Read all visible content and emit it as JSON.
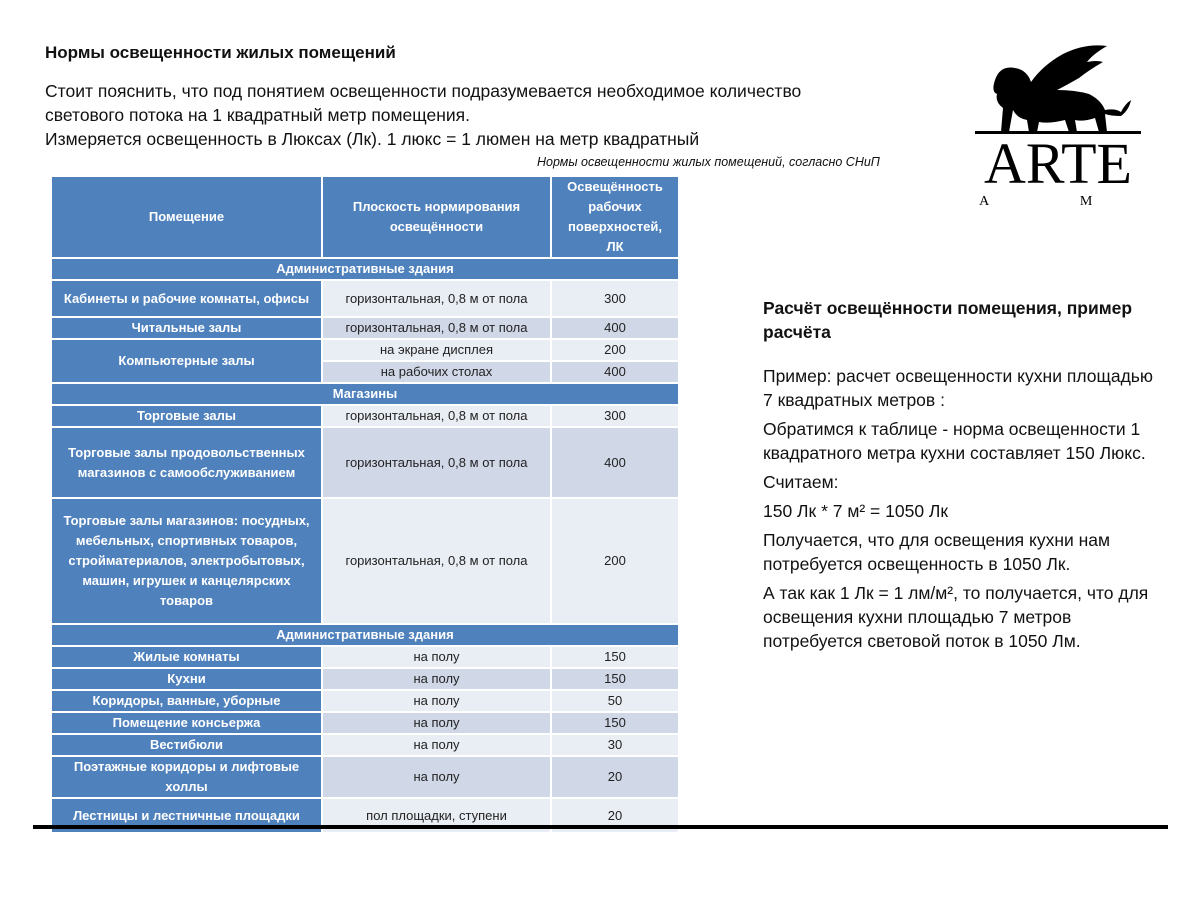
{
  "title": "Нормы освещенности жилых помещений",
  "intro": {
    "line1": "Стоит пояснить, что под понятием освещенности подразумевается необходимое количество",
    "line2": "светового потока на 1 квадратный метр помещения.",
    "line3": "Измеряется освещенность в Люксах (Лк). 1 люкс = 1 люмен на метр квадратный"
  },
  "table_caption": "Нормы освещенности жилых помещений, согласно СНиП",
  "table": {
    "headers": [
      "Помещение",
      "Плоскость нормирования освещённости",
      "Освещённость рабочих поверхностей, ЛК"
    ],
    "rows": [
      {
        "section": "Административные здания"
      },
      {
        "room": "Кабинеты и рабочие комнаты, офисы",
        "h": 35,
        "entries": [
          {
            "plane": "горизонтальная, 0,8 м от пола",
            "lux": "300"
          }
        ]
      },
      {
        "room": "Читальные залы",
        "h": 19,
        "entries": [
          {
            "plane": "горизонтальная, 0,8 м от пола",
            "lux": "400"
          }
        ]
      },
      {
        "room": "Компьютерные залы",
        "h": 19,
        "entries": [
          {
            "plane": "на экране дисплея",
            "lux": "200"
          },
          {
            "plane": "на рабочих столах",
            "lux": "400"
          }
        ]
      },
      {
        "section": "Магазины"
      },
      {
        "room": "Торговые залы",
        "h": 19,
        "entries": [
          {
            "plane": "горизонтальная, 0,8 м от пола",
            "lux": "300"
          }
        ]
      },
      {
        "room": "Торговые залы продовольственных магазинов с самообслуживанием",
        "h": 69,
        "entries": [
          {
            "plane": "горизонтальная, 0,8 м от пола",
            "lux": "400"
          }
        ]
      },
      {
        "room": "Торговые залы магазинов: посудных, мебельных, спортивных товаров, стройматериалов, электробытовых, машин, игрушек и канцелярских товаров",
        "h": 124,
        "entries": [
          {
            "plane": "горизонтальная, 0,8 м от пола",
            "lux": "200"
          }
        ]
      },
      {
        "section": "Административные здания"
      },
      {
        "room": "Жилые комнаты",
        "h": 19,
        "entries": [
          {
            "plane": "на полу",
            "lux": "150"
          }
        ]
      },
      {
        "room": "Кухни",
        "h": 19,
        "entries": [
          {
            "plane": "на полу",
            "lux": "150"
          }
        ]
      },
      {
        "room": "Коридоры, ванные, уборные",
        "h": 19,
        "entries": [
          {
            "plane": "на полу",
            "lux": "50"
          }
        ]
      },
      {
        "room": "Помещение консьержа",
        "h": 19,
        "entries": [
          {
            "plane": "на полу",
            "lux": "150"
          }
        ]
      },
      {
        "room": "Вестибюли",
        "h": 19,
        "entries": [
          {
            "plane": "на полу",
            "lux": "30"
          }
        ]
      },
      {
        "room": "Поэтажные коридоры и лифтовые холлы",
        "h": 39,
        "entries": [
          {
            "plane": "на полу",
            "lux": "20"
          }
        ]
      },
      {
        "room": "Лестницы и лестничные площадки",
        "h": 33,
        "entries": [
          {
            "plane": "пол площадки, ступени",
            "lux": "20"
          }
        ]
      }
    ]
  },
  "logo": {
    "brand": "ARTE",
    "sub": "L A M P"
  },
  "calc": {
    "heading": "Расчёт освещённости помещения, пример расчёта",
    "p1": "Пример: расчет освещенности кухни площадью 7 квадратных метров :",
    "p2": "Обратимся к таблице - норма освещенности 1 квадратного метра кухни составляет 150 Люкс.",
    "p3": "Считаем:",
    "p4": "150 Лк * 7 м² = 1050 Лк",
    "p5": "Получается, что для освещения кухни нам потребуется освещенность в 1050 Лк.",
    "p6": "А так как 1 Лк = 1 лм/м², то получается, что для освещения кухни площадью 7 метров потребуется световой поток в 1050 Лм."
  },
  "colors": {
    "header_blue": "#4f81bd",
    "row_light": "#e9edf4",
    "row_dark": "#d0d8e8"
  }
}
